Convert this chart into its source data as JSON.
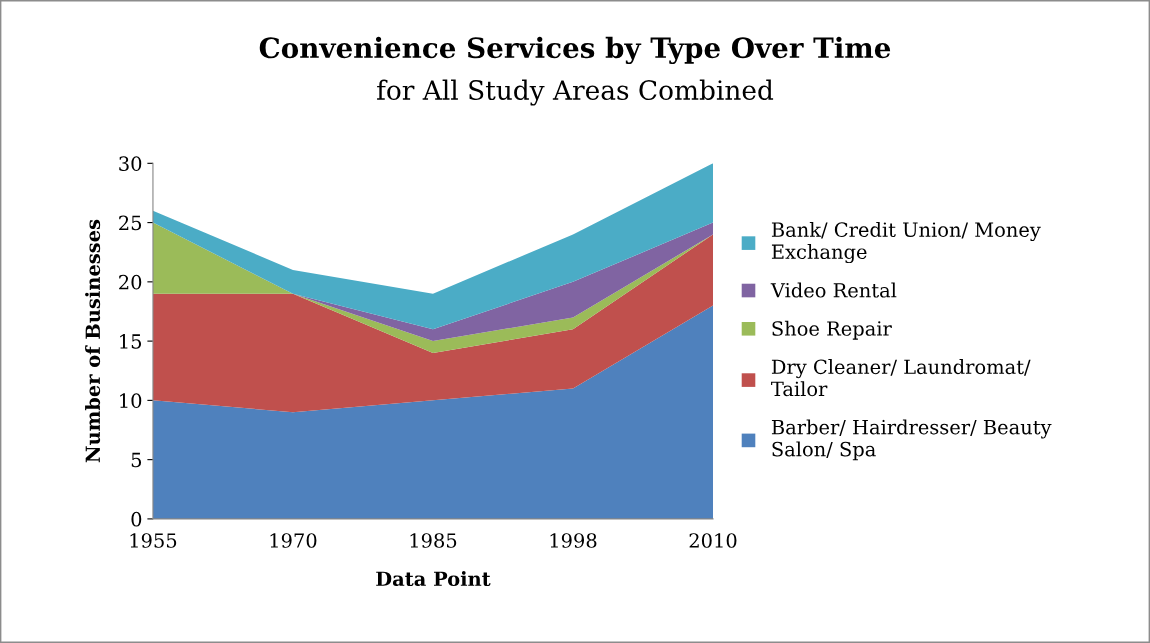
{
  "chart_data": {
    "type": "area",
    "stacked": true,
    "title": "Convenience Services by Type Over Time",
    "subtitle": "for All Study Areas Combined",
    "xlabel": "Data Point",
    "ylabel": "Number of Businesses",
    "categories": [
      "1955",
      "1970",
      "1985",
      "1998",
      "2010"
    ],
    "series": [
      {
        "name": "Barber/ Hairdresser/ Beauty Salon/ Spa",
        "color": "#4f81bd",
        "values": [
          10,
          9,
          10,
          11,
          18
        ]
      },
      {
        "name": "Dry Cleaner/ Laundromat/ Tailor",
        "color": "#c0504d",
        "values": [
          9,
          10,
          4,
          5,
          6
        ]
      },
      {
        "name": "Shoe Repair",
        "color": "#9bbb59",
        "values": [
          6,
          0,
          1,
          1,
          0
        ]
      },
      {
        "name": "Video Rental",
        "color": "#8064a2",
        "values": [
          0,
          0,
          1,
          3,
          1
        ]
      },
      {
        "name": "Bank/ Credit Union/ Money Exchange",
        "color": "#4bacc6",
        "values": [
          1,
          2,
          3,
          4,
          5
        ]
      }
    ],
    "ylim": [
      0,
      30
    ],
    "yticks": [
      0,
      5,
      10,
      15,
      20,
      25,
      30
    ],
    "grid": false,
    "legend": "right"
  }
}
